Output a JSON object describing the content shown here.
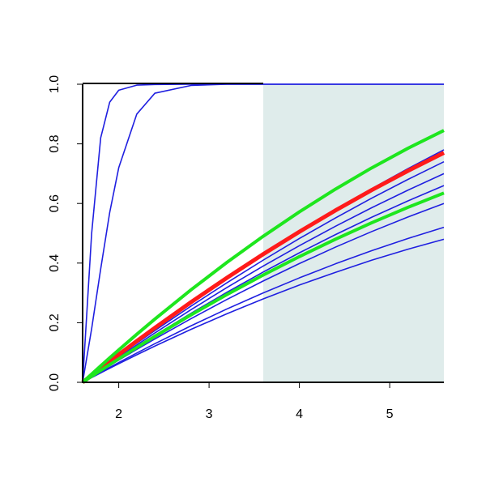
{
  "chart_data": {
    "type": "line",
    "x": [
      1.6,
      1.7,
      1.8,
      1.9,
      2.0,
      2.2,
      2.4,
      2.8,
      3.2,
      3.6,
      4.0,
      4.4,
      4.8,
      5.2,
      5.6
    ],
    "xlim": [
      1.6,
      5.6
    ],
    "xticks": [
      2,
      3,
      4,
      5
    ],
    "ylim": [
      0,
      1
    ],
    "yticks": [
      {
        "value": 0,
        "label": "0.0"
      },
      {
        "value": 0.2,
        "label": "0.2"
      },
      {
        "value": 0.4,
        "label": "0.4"
      },
      {
        "value": 0.6,
        "label": "0.6"
      },
      {
        "value": 0.8,
        "label": "0.8"
      },
      {
        "value": 1,
        "label": "1.0"
      }
    ],
    "highlight_x": [
      3.6,
      5.6
    ],
    "highlight_color": "#dfeceb",
    "series": [
      {
        "color": "#1f1fe0",
        "line_width": 1.6,
        "values": [
          0,
          0.5,
          0.82,
          0.94,
          0.98,
          0.997,
          0.999,
          1,
          1,
          1,
          1,
          1,
          1,
          1,
          1
        ]
      },
      {
        "color": "#1f1fe0",
        "line_width": 1.6,
        "values": [
          0,
          0.18,
          0.38,
          0.57,
          0.72,
          0.9,
          0.97,
          0.996,
          1,
          1,
          1,
          1,
          1,
          1,
          1
        ]
      },
      {
        "color": "#1f1fe0",
        "line_width": 1.6,
        "values": [
          0,
          0.0234,
          0.0466,
          0.0696,
          0.0924,
          0.1374,
          0.1816,
          0.2676,
          0.3504,
          0.43,
          0.5064,
          0.5796,
          0.6496,
          0.7164,
          0.78
        ]
      },
      {
        "color": "#1f1fe0",
        "line_width": 1.6,
        "values": [
          0,
          0.0224,
          0.0446,
          0.0666,
          0.0884,
          0.1314,
          0.1736,
          0.2556,
          0.3344,
          0.41,
          0.4824,
          0.5516,
          0.6176,
          0.6804,
          0.74
        ]
      },
      {
        "color": "#1f1fe0",
        "line_width": 1.6,
        "values": [
          0,
          0.0214,
          0.0426,
          0.0636,
          0.0844,
          0.1254,
          0.1656,
          0.2436,
          0.3184,
          0.39,
          0.4584,
          0.5236,
          0.5856,
          0.6444,
          0.7
        ]
      },
      {
        "color": "#1f1fe0",
        "line_width": 1.6,
        "values": [
          0,
          0.0204,
          0.0406,
          0.0606,
          0.0804,
          0.1194,
          0.1576,
          0.2316,
          0.3024,
          0.37,
          0.4344,
          0.4956,
          0.5536,
          0.6084,
          0.66
        ]
      },
      {
        "color": "#1f1fe0",
        "line_width": 1.6,
        "values": [
          0,
          0.0189,
          0.0376,
          0.0561,
          0.0744,
          0.1104,
          0.1456,
          0.2136,
          0.2784,
          0.34,
          0.3984,
          0.4536,
          0.5056,
          0.5544,
          0.6
        ]
      },
      {
        "color": "#1f1fe0",
        "line_width": 1.6,
        "values": [
          0,
          0.0169,
          0.0336,
          0.0501,
          0.0664,
          0.0984,
          0.1296,
          0.1896,
          0.2464,
          0.3,
          0.3504,
          0.3976,
          0.4416,
          0.4824,
          0.52
        ]
      },
      {
        "color": "#1f1fe0",
        "line_width": 1.6,
        "values": [
          0,
          0.0159,
          0.0316,
          0.0471,
          0.0624,
          0.0924,
          0.1216,
          0.1776,
          0.2304,
          0.28,
          0.3264,
          0.3688,
          0.4096,
          0.4464,
          0.48
        ]
      },
      {
        "color": "#ff1a1a",
        "line_width": 5,
        "values": [
          0,
          0.0236,
          0.0471,
          0.0702,
          0.0932,
          0.1385,
          0.1828,
          0.2688,
          0.3512,
          0.43,
          0.5052,
          0.5768,
          0.6448,
          0.7092,
          0.77
        ]
      },
      {
        "color": "#1ee61e",
        "line_width": 4,
        "values": [
          0,
          0.0277,
          0.0551,
          0.0821,
          0.1088,
          0.1612,
          0.2122,
          0.3102,
          0.4028,
          0.49,
          0.5718,
          0.6482,
          0.7192,
          0.7848,
          0.845
        ]
      },
      {
        "color": "#1ee61e",
        "line_width": 4,
        "values": [
          0,
          0.02,
          0.0398,
          0.0594,
          0.0788,
          0.1169,
          0.1542,
          0.2262,
          0.2948,
          0.36,
          0.4218,
          0.4802,
          0.5352,
          0.5868,
          0.635
        ]
      }
    ]
  }
}
